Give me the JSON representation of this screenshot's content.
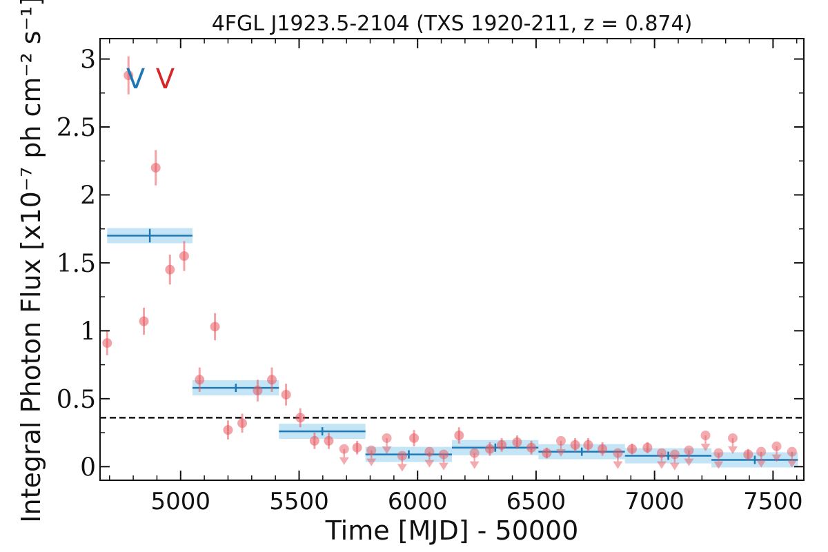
{
  "chart_data": {
    "type": "scatter",
    "title": "4FGL J1923.5-2104 (TXS 1920-211, z = 0.874)",
    "xlabel": "Time [MJD] - 50000",
    "ylabel": "Integral Photon Flux [x10⁻⁷ ph cm⁻² s⁻¹]",
    "xlim": [
      4660,
      7630
    ],
    "ylim": [
      -0.1,
      3.15
    ],
    "xticks": [
      5000,
      5500,
      6000,
      6500,
      7000,
      7500
    ],
    "xtick_labels": [
      "5000",
      "5500",
      "6000",
      "6500",
      "7000",
      "7500"
    ],
    "yticks": [
      0,
      0.5,
      1,
      1.5,
      2,
      2.5,
      3
    ],
    "ytick_labels": [
      "0",
      "0.5",
      "1",
      "1.5",
      "2",
      "2.5",
      "3"
    ],
    "reference_line": 0.36,
    "markers": [
      {
        "label": "V",
        "x": 4810,
        "color": "#1f77b4"
      },
      {
        "label": "V",
        "x": 4935,
        "color": "#d62728"
      }
    ],
    "series": [
      {
        "kind": "points",
        "color": "#e8585f",
        "points": [
          {
            "x": 4690,
            "y": 0.91,
            "err": 0.09
          },
          {
            "x": 4780,
            "y": 2.88,
            "err": 0.14
          },
          {
            "x": 4845,
            "y": 1.07,
            "err": 0.1
          },
          {
            "x": 4895,
            "y": 2.2,
            "err": 0.13
          },
          {
            "x": 4955,
            "y": 1.45,
            "err": 0.11
          },
          {
            "x": 5015,
            "y": 1.55,
            "err": 0.11
          },
          {
            "x": 5080,
            "y": 0.64,
            "err": 0.09
          },
          {
            "x": 5145,
            "y": 1.03,
            "err": 0.1
          },
          {
            "x": 5200,
            "y": 0.27,
            "err": 0.07
          },
          {
            "x": 5260,
            "y": 0.32,
            "err": 0.07
          },
          {
            "x": 5325,
            "y": 0.56,
            "err": 0.08
          },
          {
            "x": 5385,
            "y": 0.64,
            "err": 0.09
          },
          {
            "x": 5445,
            "y": 0.53,
            "err": 0.08
          },
          {
            "x": 5505,
            "y": 0.36,
            "err": 0.07
          },
          {
            "x": 5565,
            "y": 0.19,
            "err": 0.06
          },
          {
            "x": 5625,
            "y": 0.19,
            "err": 0.06
          },
          {
            "x": 5745,
            "y": 0.14,
            "err": 0.05
          },
          {
            "x": 5985,
            "y": 0.21,
            "err": 0.06
          },
          {
            "x": 6175,
            "y": 0.23,
            "err": 0.06
          },
          {
            "x": 6305,
            "y": 0.13,
            "err": 0.05
          },
          {
            "x": 6355,
            "y": 0.16,
            "err": 0.05
          },
          {
            "x": 6420,
            "y": 0.18,
            "err": 0.05
          },
          {
            "x": 6480,
            "y": 0.14,
            "err": 0.05
          },
          {
            "x": 6545,
            "y": 0.1,
            "err": 0.04
          },
          {
            "x": 6665,
            "y": 0.16,
            "err": 0.05
          },
          {
            "x": 6720,
            "y": 0.16,
            "err": 0.05
          },
          {
            "x": 6780,
            "y": 0.13,
            "err": 0.05
          },
          {
            "x": 6905,
            "y": 0.13,
            "err": 0.04
          },
          {
            "x": 6970,
            "y": 0.14,
            "err": 0.04
          },
          {
            "x": 7395,
            "y": 0.09,
            "err": 0.04
          }
        ]
      },
      {
        "kind": "upper_limits",
        "color": "#e8585f",
        "points": [
          {
            "x": 5690,
            "y": 0.13
          },
          {
            "x": 5805,
            "y": 0.12
          },
          {
            "x": 5870,
            "y": 0.21
          },
          {
            "x": 5935,
            "y": 0.08
          },
          {
            "x": 6050,
            "y": 0.11
          },
          {
            "x": 6110,
            "y": 0.09
          },
          {
            "x": 6240,
            "y": 0.1
          },
          {
            "x": 6605,
            "y": 0.19
          },
          {
            "x": 6845,
            "y": 0.1
          },
          {
            "x": 7030,
            "y": 0.1
          },
          {
            "x": 7085,
            "y": 0.09
          },
          {
            "x": 7145,
            "y": 0.12
          },
          {
            "x": 7215,
            "y": 0.23
          },
          {
            "x": 7270,
            "y": 0.1
          },
          {
            "x": 7330,
            "y": 0.21
          },
          {
            "x": 7450,
            "y": 0.11
          },
          {
            "x": 7515,
            "y": 0.15
          },
          {
            "x": 7580,
            "y": 0.11
          }
        ]
      },
      {
        "kind": "bins",
        "color": "#1f77b4",
        "band_color": "#b9e1f5",
        "bins": [
          {
            "x0": 4690,
            "x1": 5050,
            "y": 1.7,
            "err": 0.05,
            "xc": 4870
          },
          {
            "x0": 5050,
            "x1": 5415,
            "y": 0.58,
            "err": 0.03,
            "xc": 5233
          },
          {
            "x0": 5415,
            "x1": 5780,
            "y": 0.26,
            "err": 0.02,
            "xc": 5598
          },
          {
            "x0": 5780,
            "x1": 6145,
            "y": 0.09,
            "err": 0.015,
            "xc": 5963
          },
          {
            "x0": 6145,
            "x1": 6510,
            "y": 0.14,
            "err": 0.02,
            "xc": 6328
          },
          {
            "x0": 6510,
            "x1": 6875,
            "y": 0.11,
            "err": 0.015,
            "xc": 6693
          },
          {
            "x0": 6875,
            "x1": 7240,
            "y": 0.08,
            "err": 0.015,
            "xc": 7058
          },
          {
            "x0": 7240,
            "x1": 7605,
            "y": 0.05,
            "err": 0.012,
            "xc": 7423
          }
        ]
      }
    ]
  }
}
